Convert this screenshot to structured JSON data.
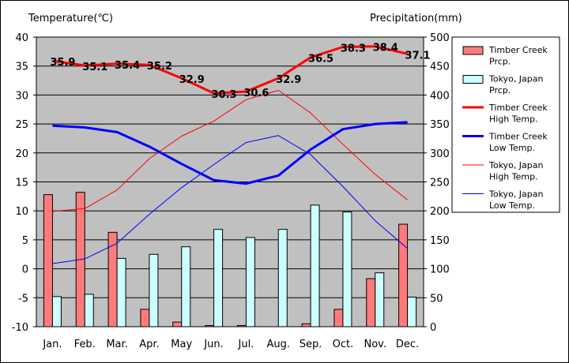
{
  "chart_data": {
    "type": "bar+line",
    "y_left_label": "Temperature(℃)",
    "y_right_label": "Precipitation(mm)",
    "y_left_range": [
      -10,
      40
    ],
    "y_left_ticks": [
      "40",
      "35",
      "30",
      "25",
      "20",
      "15",
      "10",
      "5",
      "0",
      "-5",
      "-10"
    ],
    "y_right_range": [
      0,
      500
    ],
    "y_right_ticks": [
      "500",
      "450",
      "400",
      "350",
      "300",
      "250",
      "200",
      "150",
      "100",
      "50",
      "0"
    ],
    "categories": [
      "Jan.",
      "Feb.",
      "Mar.",
      "Apr.",
      "May",
      "Jun.",
      "Jul.",
      "Aug.",
      "Sep.",
      "Oct.",
      "Nov.",
      "Dec."
    ],
    "plot_background": "#c0c0c0",
    "grid": "horizontal",
    "legend_position": "right",
    "series": [
      {
        "name": "Timber Creek Prcp.",
        "kind": "bar",
        "axis": "right",
        "color": "#ff7b7b",
        "values": [
          228,
          232,
          163,
          30,
          8,
          2,
          2,
          0,
          5,
          30,
          83,
          177
        ]
      },
      {
        "name": "Tokyo, Japan Prcp.",
        "kind": "bar",
        "axis": "right",
        "color": "#ccffff",
        "values": [
          52,
          56,
          118,
          125,
          138,
          168,
          154,
          168,
          210,
          198,
          93,
          51
        ]
      },
      {
        "name": "Timber Creek High Temp.",
        "kind": "line",
        "axis": "left",
        "color": "#ff0000",
        "width": 3,
        "values": [
          35.9,
          35.1,
          35.4,
          35.2,
          32.9,
          30.3,
          30.6,
          32.9,
          36.5,
          38.3,
          38.4,
          37.1
        ],
        "labels": [
          "35.9",
          "35.1",
          "35.4",
          "35.2",
          "32.9",
          "30.3",
          "30.6",
          "32.9",
          "36.5",
          "38.3",
          "38.4",
          "37.1"
        ]
      },
      {
        "name": "Timber Creek Low Temp.",
        "kind": "line",
        "axis": "left",
        "color": "#0000ff",
        "width": 3,
        "values": [
          24.7,
          24.4,
          23.6,
          21.1,
          18.1,
          15.3,
          14.7,
          16.1,
          20.6,
          24.1,
          25.0,
          25.3
        ]
      },
      {
        "name": "Tokyo, Japan High Temp.",
        "kind": "line",
        "axis": "left",
        "color": "#ff0000",
        "width": 1,
        "values": [
          9.9,
          10.4,
          13.6,
          19.0,
          22.9,
          25.5,
          29.2,
          30.8,
          26.9,
          21.5,
          16.3,
          11.9
        ]
      },
      {
        "name": "Tokyo, Japan Low Temp.",
        "kind": "line",
        "axis": "left",
        "color": "#0000ff",
        "width": 1,
        "values": [
          0.9,
          1.7,
          4.4,
          9.4,
          14.0,
          18.0,
          21.8,
          23.0,
          19.7,
          14.2,
          8.3,
          3.5
        ]
      }
    ]
  },
  "legend": [
    {
      "lines": [
        "Timber Creek",
        "Prcp."
      ],
      "kind": "bar",
      "color": "#ff7b7b"
    },
    {
      "lines": [
        "Tokyo, Japan",
        "Prcp."
      ],
      "kind": "bar",
      "color": "#ccffff"
    },
    {
      "lines": [
        "Timber Creek",
        "High Temp."
      ],
      "kind": "line",
      "color": "#ff0000",
      "width": 3
    },
    {
      "lines": [
        "Timber Creek",
        "Low Temp."
      ],
      "kind": "line",
      "color": "#0000ff",
      "width": 3
    },
    {
      "lines": [
        "Tokyo, Japan",
        "High Temp."
      ],
      "kind": "line",
      "color": "#ff0000",
      "width": 1
    },
    {
      "lines": [
        "Tokyo, Japan",
        "Low Temp."
      ],
      "kind": "line",
      "color": "#0000ff",
      "width": 1
    }
  ]
}
